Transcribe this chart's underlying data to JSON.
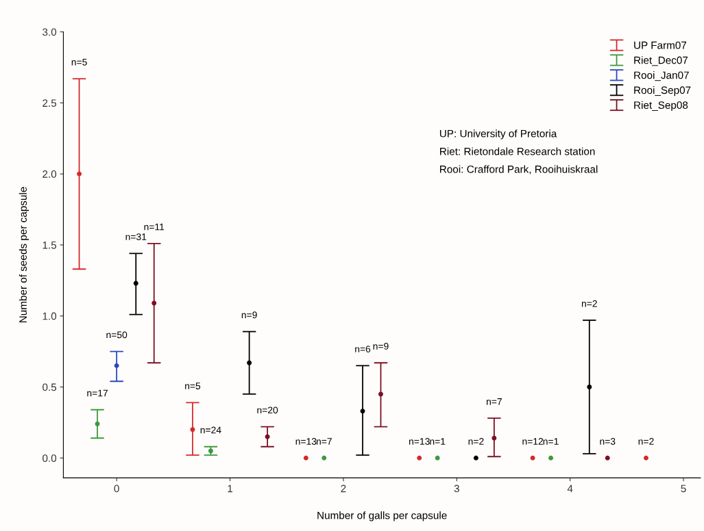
{
  "chart_data": {
    "type": "scatter",
    "xlabel": "Number of galls per capsule",
    "ylabel": "Number of seeds per capsule",
    "xlim": [
      -0.47,
      5.15
    ],
    "ylim": [
      -0.14,
      3.0
    ],
    "xticks": [
      0,
      1,
      2,
      3,
      4,
      5
    ],
    "yticks": [
      {
        "value": 0,
        "label": "0.0"
      },
      {
        "value": 0.5,
        "label": "0.5"
      },
      {
        "value": 1,
        "label": "1.0"
      },
      {
        "value": 1.5,
        "label": "1.5"
      },
      {
        "value": 2,
        "label": "2.0"
      },
      {
        "value": 2.5,
        "label": "2.5"
      },
      {
        "value": 3,
        "label": "3.0"
      }
    ],
    "grid": false,
    "legend": "top right",
    "marker": "circle",
    "series": [
      {
        "name": "UP Farm07",
        "color": "#d42a2a",
        "x": [
          -0.33,
          0.67,
          1.67,
          2.67,
          3.67,
          4.67
        ],
        "values": [
          2.0,
          0.2,
          0.0,
          0.0,
          0.0,
          0.0
        ],
        "errors": [
          [
            1.33,
            2.67
          ],
          [
            0.02,
            0.39
          ],
          null,
          null,
          null,
          null
        ]
      },
      {
        "name": "Riet_Dec07",
        "color": "#3c9a3c",
        "x": [
          -0.17,
          0.83,
          1.83,
          2.83,
          3.83
        ],
        "values": [
          0.24,
          0.05,
          0.0,
          0.0,
          0.0
        ],
        "errors": [
          [
            0.14,
            0.34
          ],
          [
            0.02,
            0.08
          ],
          null,
          null,
          null
        ]
      },
      {
        "name": "Rooi_Jan07",
        "color": "#2848c0",
        "x": [
          0.0
        ],
        "values": [
          0.65
        ],
        "errors": [
          [
            0.54,
            0.75
          ]
        ]
      },
      {
        "name": "Rooi_Sep07",
        "color": "#000000",
        "x": [
          0.17,
          1.17,
          2.17,
          3.17,
          4.17
        ],
        "values": [
          1.23,
          0.67,
          0.33,
          0.0,
          0.5
        ],
        "errors": [
          [
            1.01,
            1.44
          ],
          [
            0.45,
            0.89
          ],
          [
            0.02,
            0.65
          ],
          null,
          [
            0.03,
            0.97
          ]
        ]
      },
      {
        "name": "Riet_Sep08",
        "color": "#7a1020",
        "x": [
          0.33,
          1.33,
          2.33,
          3.33,
          4.33
        ],
        "values": [
          1.09,
          0.15,
          0.45,
          0.14,
          0.0
        ],
        "errors": [
          [
            0.67,
            1.51
          ],
          [
            0.08,
            0.22
          ],
          [
            0.22,
            0.67
          ],
          [
            0.01,
            0.28
          ],
          null
        ]
      }
    ],
    "annotations": [
      {
        "text": "n=5",
        "x": -0.33,
        "y": 2.67
      },
      {
        "text": "n=5",
        "x": 0.67,
        "y": 0.39
      },
      {
        "text": "n=13",
        "x": 1.67,
        "y": 0.0
      },
      {
        "text": "n=13",
        "x": 2.67,
        "y": 0.0
      },
      {
        "text": "n=12",
        "x": 3.67,
        "y": 0.0
      },
      {
        "text": "n=2",
        "x": 4.67,
        "y": 0.0
      },
      {
        "text": "n=17",
        "x": -0.17,
        "y": 0.34
      },
      {
        "text": "n=24",
        "x": 0.83,
        "y": 0.08
      },
      {
        "text": "n=7",
        "x": 1.83,
        "y": 0.0
      },
      {
        "text": "n=1",
        "x": 2.83,
        "y": 0.0
      },
      {
        "text": "n=1",
        "x": 3.83,
        "y": 0.0
      },
      {
        "text": "n=50",
        "x": 0.0,
        "y": 0.75
      },
      {
        "text": "n=31",
        "x": 0.17,
        "y": 1.44
      },
      {
        "text": "n=9",
        "x": 1.17,
        "y": 0.89
      },
      {
        "text": "n=6",
        "x": 2.17,
        "y": 0.65
      },
      {
        "text": "n=2",
        "x": 3.17,
        "y": 0.0
      },
      {
        "text": "n=2",
        "x": 4.17,
        "y": 0.97
      },
      {
        "text": "n=11",
        "x": 0.33,
        "y": 1.51
      },
      {
        "text": "n=20",
        "x": 1.33,
        "y": 0.22
      },
      {
        "text": "n=9",
        "x": 2.33,
        "y": 0.67
      },
      {
        "text": "n=7",
        "x": 3.33,
        "y": 0.28
      },
      {
        "text": "n=3",
        "x": 4.33,
        "y": 0.0
      },
      "UP: University of Pretoria",
      "Riet: Rietondale Research station",
      "Rooi: Crafford Park, Rooihuiskraal"
    ]
  }
}
